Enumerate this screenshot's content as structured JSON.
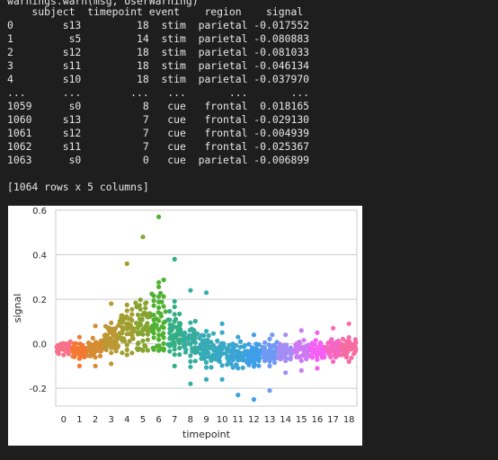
{
  "console": {
    "top_fragment": "warnings.warn(msg, UserWarning)",
    "header": "    subject  timepoint event    region    signal",
    "rows": [
      "0        s13         18  stim  parietal -0.017552",
      "1         s5         14  stim  parietal -0.080883",
      "2        s12         18  stim  parietal -0.081033",
      "3        s11         18  stim  parietal -0.046134",
      "4        s10         18  stim  parietal -0.037970",
      "...      ...        ...   ...       ...       ...",
      "1059      s0          8   cue   frontal  0.018165",
      "1060     s13          7   cue   frontal -0.029130",
      "1061     s12          7   cue   frontal -0.004939",
      "1062     s11          7   cue   frontal -0.025367",
      "1063      s0          0   cue  parietal -0.006899"
    ],
    "summary": "[1064 rows x 5 columns]"
  },
  "chart_data": {
    "type": "scatter",
    "style": "swarmplot",
    "xlabel": "timepoint",
    "ylabel": "signal",
    "categories": [
      "0",
      "1",
      "2",
      "3",
      "4",
      "5",
      "6",
      "7",
      "8",
      "9",
      "10",
      "11",
      "12",
      "13",
      "14",
      "15",
      "16",
      "17",
      "18"
    ],
    "ylim": [
      -0.28,
      0.6
    ],
    "yticks": [
      "-0.2",
      "0.0",
      "0.2",
      "0.4",
      "0.6"
    ],
    "ytick_values": [
      -0.2,
      0.0,
      0.2,
      0.4,
      0.6
    ],
    "grid": true,
    "series": [
      {
        "category": "0",
        "color": "#f77189",
        "mean": -0.02,
        "spread": 0.02,
        "min": -0.05,
        "max": 0.01,
        "n": 56
      },
      {
        "category": "1",
        "color": "#f37932",
        "mean": -0.03,
        "spread": 0.022,
        "min": -0.1,
        "max": 0.03,
        "n": 56
      },
      {
        "category": "2",
        "color": "#d58c32",
        "mean": -0.02,
        "spread": 0.03,
        "min": -0.1,
        "max": 0.08,
        "n": 56
      },
      {
        "category": "3",
        "color": "#bb9832",
        "mean": 0.02,
        "spread": 0.05,
        "min": -0.09,
        "max": 0.18,
        "n": 56
      },
      {
        "category": "4",
        "color": "#a39e31",
        "mean": 0.05,
        "spread": 0.08,
        "min": -0.05,
        "max": 0.36,
        "n": 56
      },
      {
        "category": "5",
        "color": "#87a431",
        "mean": 0.08,
        "spread": 0.11,
        "min": -0.03,
        "max": 0.48,
        "n": 56
      },
      {
        "category": "6",
        "color": "#50b131",
        "mean": 0.09,
        "spread": 0.12,
        "min": -0.03,
        "max": 0.57,
        "n": 56
      },
      {
        "category": "7",
        "color": "#34ae85",
        "mean": 0.05,
        "spread": 0.08,
        "min": -0.1,
        "max": 0.38,
        "n": 56
      },
      {
        "category": "8",
        "color": "#36ad9e",
        "mean": 0.01,
        "spread": 0.07,
        "min": -0.18,
        "max": 0.24,
        "n": 56
      },
      {
        "category": "9",
        "color": "#37abb5",
        "mean": -0.02,
        "spread": 0.06,
        "min": -0.16,
        "max": 0.23,
        "n": 56
      },
      {
        "category": "10",
        "color": "#38a9c5",
        "mean": -0.04,
        "spread": 0.04,
        "min": -0.16,
        "max": 0.09,
        "n": 56
      },
      {
        "category": "11",
        "color": "#3aa5d5",
        "mean": -0.05,
        "spread": 0.04,
        "min": -0.23,
        "max": 0.03,
        "n": 56
      },
      {
        "category": "12",
        "color": "#3e9ee8",
        "mean": -0.05,
        "spread": 0.04,
        "min": -0.25,
        "max": 0.04,
        "n": 56
      },
      {
        "category": "13",
        "color": "#6e9af4",
        "mean": -0.05,
        "spread": 0.04,
        "min": -0.21,
        "max": 0.04,
        "n": 56
      },
      {
        "category": "14",
        "color": "#a48cf4",
        "mean": -0.04,
        "spread": 0.035,
        "min": -0.13,
        "max": 0.04,
        "n": 56
      },
      {
        "category": "15",
        "color": "#cc7af4",
        "mean": -0.03,
        "spread": 0.03,
        "min": -0.12,
        "max": 0.06,
        "n": 56
      },
      {
        "category": "16",
        "color": "#f45ff4",
        "mean": -0.03,
        "spread": 0.03,
        "min": -0.11,
        "max": 0.05,
        "n": 56
      },
      {
        "category": "17",
        "color": "#f567c0",
        "mean": -0.02,
        "spread": 0.03,
        "min": -0.08,
        "max": 0.07,
        "n": 56
      },
      {
        "category": "18",
        "color": "#f66ba2",
        "mean": -0.02,
        "spread": 0.03,
        "min": -0.08,
        "max": 0.09,
        "n": 56
      }
    ]
  }
}
